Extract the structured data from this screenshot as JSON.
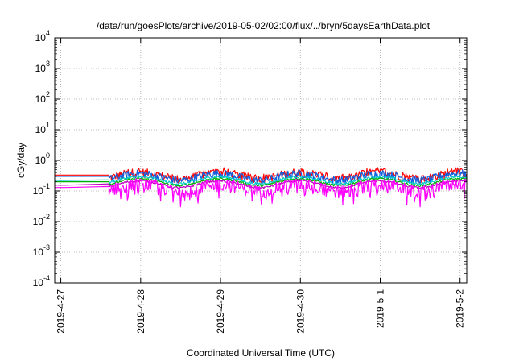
{
  "chart_data": {
    "type": "line",
    "title": "/data/run/goesPlots/archive/2019-05-02/02:00/flux/../bryn/5daysEarthData.plot",
    "xlabel": "Coordinated Universal Time (UTC)",
    "ylabel": "cGy/day",
    "x_ticks": [
      "2019-4-27",
      "2019-4-28",
      "2019-4-29",
      "2019-4-30",
      "2019-5-1",
      "2019-5-2"
    ],
    "x_range": [
      "2019-04-26T22:10",
      "2019-05-02T02:00"
    ],
    "y_scale": "log",
    "ylim": [
      0.0001,
      10000
    ],
    "y_ticks": [
      {
        "base": "10",
        "exp": "-4",
        "value": 0.0001
      },
      {
        "base": "10",
        "exp": "-3",
        "value": 0.001
      },
      {
        "base": "10",
        "exp": "-2",
        "value": 0.01
      },
      {
        "base": "10",
        "exp": "-1",
        "value": 0.1
      },
      {
        "base": "10",
        "exp": "0",
        "value": 1
      },
      {
        "base": "10",
        "exp": "1",
        "value": 10
      },
      {
        "base": "10",
        "exp": "2",
        "value": 100
      },
      {
        "base": "10",
        "exp": "3",
        "value": 1000
      },
      {
        "base": "10",
        "exp": "4",
        "value": 10000
      }
    ],
    "grid": true,
    "legend": "none",
    "gap": {
      "start": "2019-04-27T01:30",
      "end": "2019-04-27T14:30"
    },
    "series": [
      {
        "color": "#ff0000",
        "start": 0.33,
        "level": 0.33,
        "spread": 0.32
      },
      {
        "color": "#1060e0",
        "start": 0.3,
        "level": 0.3,
        "spread": 0.3
      },
      {
        "color": "#00c8c8",
        "start": 0.22,
        "level": 0.23,
        "spread": 0.1
      },
      {
        "color": "#00b000",
        "start": 0.2,
        "level": 0.2,
        "spread": 0.07
      },
      {
        "color": "#c000c0",
        "start": 0.155,
        "level": 0.17,
        "spread": 0.08
      },
      {
        "color": "#ff00ff",
        "start": 0.13,
        "level": 0.14,
        "spread": 0.45
      }
    ]
  }
}
